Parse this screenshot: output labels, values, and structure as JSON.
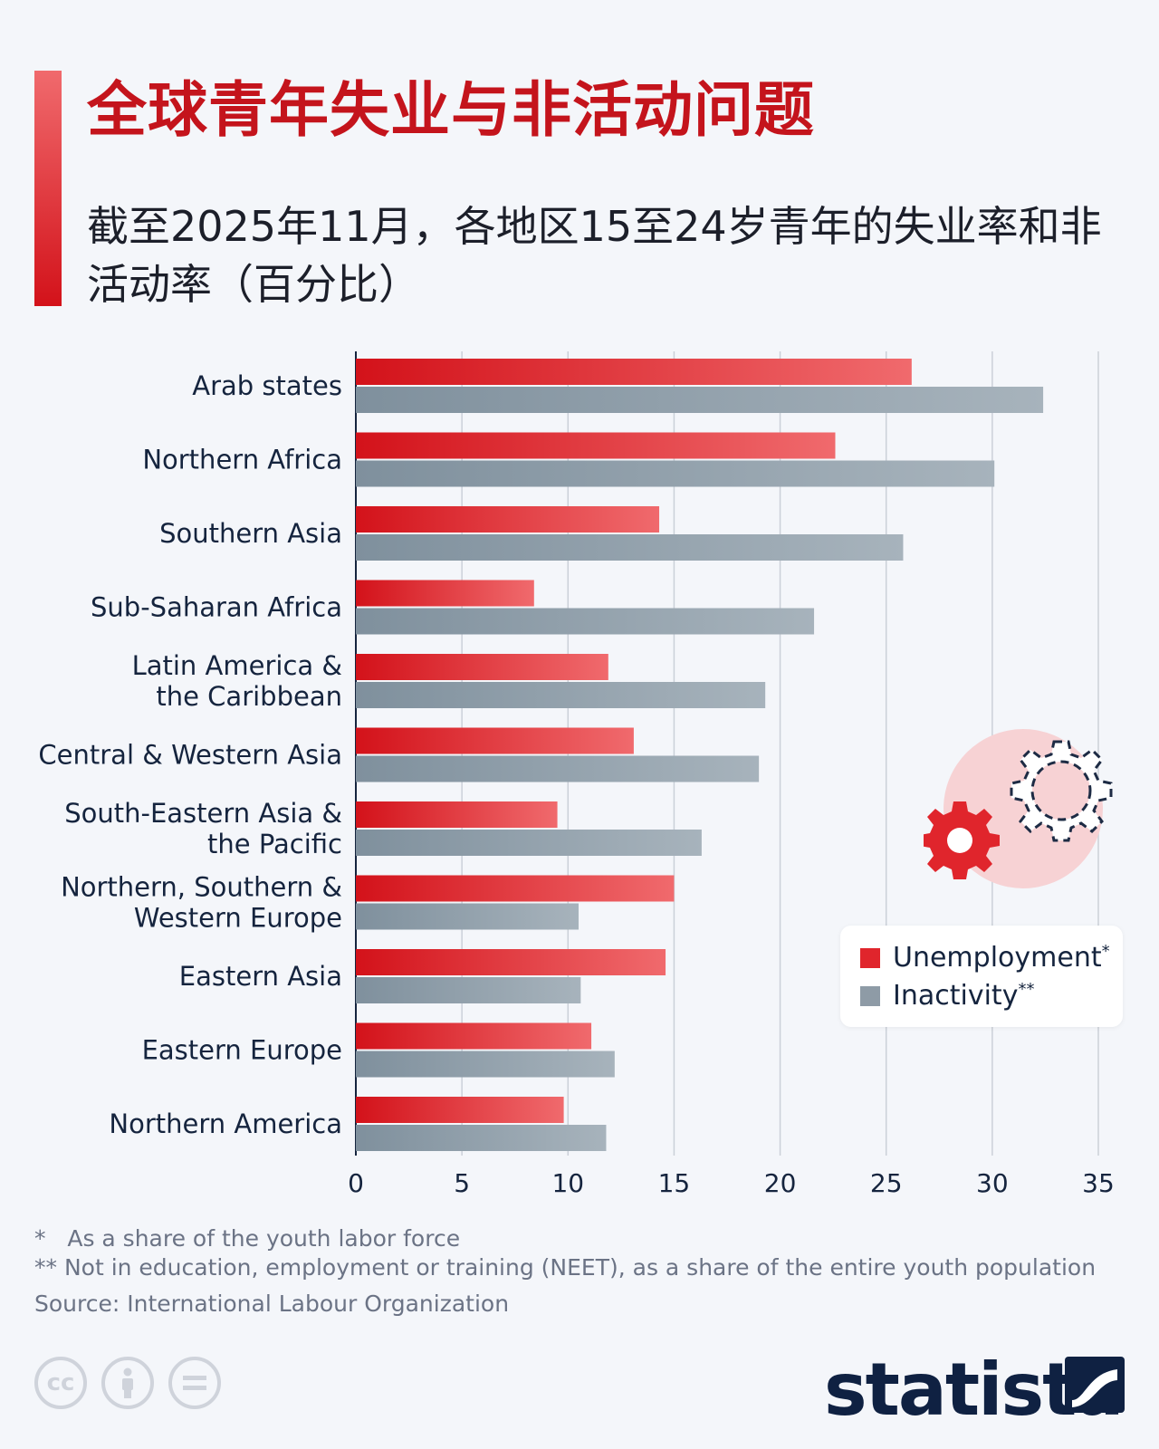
{
  "title": "全球青年失业与非活动问题",
  "subtitle": "截至2025年11月，各地区15至24岁青年的失业率和非活动率（百分比）",
  "chart_data": {
    "type": "bar",
    "orientation": "horizontal",
    "categories": [
      "Arab states",
      "Northern Africa",
      "Southern Asia",
      "Sub-Saharan Africa",
      "Latin America &\nthe Caribbean",
      "Central & Western Asia",
      "South-Eastern Asia &\nthe Pacific",
      "Northern, Southern &\nWestern Europe",
      "Eastern Asia",
      "Eastern Europe",
      "Northern America"
    ],
    "series": [
      {
        "name": "Unemployment*",
        "color": "#e0252c",
        "values": [
          26.2,
          22.6,
          14.3,
          8.4,
          11.9,
          13.1,
          9.5,
          15.0,
          14.6,
          11.1,
          9.8
        ]
      },
      {
        "name": "Inactivity**",
        "color": "#8e9ba6",
        "values": [
          32.4,
          30.1,
          25.8,
          21.6,
          19.3,
          19.0,
          16.3,
          10.5,
          10.6,
          12.2,
          11.8
        ]
      }
    ],
    "xlim": [
      0,
      35
    ],
    "xticks": [
      0,
      5,
      10,
      15,
      20,
      25,
      30,
      35
    ],
    "grid": true,
    "legend_placement": "right"
  },
  "legend": {
    "items": [
      {
        "label": "Unemployment",
        "suffix": "*",
        "color": "#e0252c"
      },
      {
        "label": "Inactivity",
        "suffix": "**",
        "color": "#8e9ba6"
      }
    ]
  },
  "footnotes": [
    "*   As a share of the youth labor force",
    "** Not in education, employment or training (NEET), as a share of the entire youth population"
  ],
  "source": "Source: International Labour Organization",
  "brand": "statista",
  "icons": [
    "cc-icon",
    "person-icon",
    "equals-icon",
    "gear-icon"
  ]
}
